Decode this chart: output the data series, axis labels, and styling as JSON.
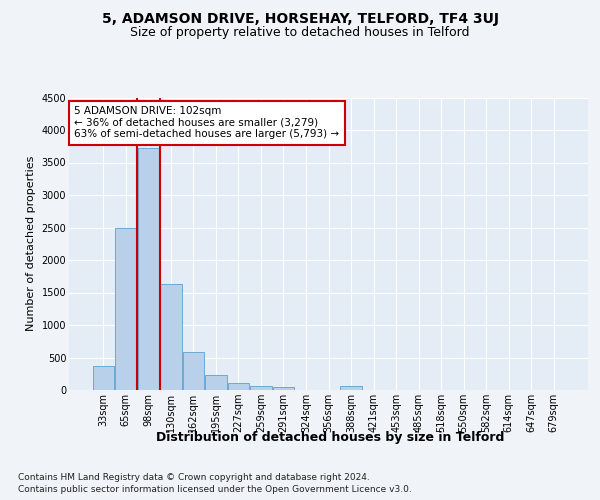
{
  "title_line1": "5, ADAMSON DRIVE, HORSEHAY, TELFORD, TF4 3UJ",
  "title_line2": "Size of property relative to detached houses in Telford",
  "xlabel": "Distribution of detached houses by size in Telford",
  "ylabel": "Number of detached properties",
  "categories": [
    "33sqm",
    "65sqm",
    "98sqm",
    "130sqm",
    "162sqm",
    "195sqm",
    "227sqm",
    "259sqm",
    "291sqm",
    "324sqm",
    "356sqm",
    "388sqm",
    "421sqm",
    "453sqm",
    "485sqm",
    "518sqm",
    "550sqm",
    "582sqm",
    "614sqm",
    "647sqm",
    "679sqm"
  ],
  "values": [
    370,
    2500,
    3720,
    1630,
    590,
    230,
    110,
    60,
    40,
    0,
    0,
    60,
    0,
    0,
    0,
    0,
    0,
    0,
    0,
    0,
    0
  ],
  "bar_color": "#b8d0ea",
  "bar_edge_color": "#6aaad4",
  "highlight_bar_index": 2,
  "highlight_line_color": "#cc0000",
  "ylim": [
    0,
    4500
  ],
  "yticks": [
    0,
    500,
    1000,
    1500,
    2000,
    2500,
    3000,
    3500,
    4000,
    4500
  ],
  "annotation_text": "5 ADAMSON DRIVE: 102sqm\n← 36% of detached houses are smaller (3,279)\n63% of semi-detached houses are larger (5,793) →",
  "annotation_box_color": "#ffffff",
  "annotation_box_edge_color": "#cc0000",
  "footer_line1": "Contains HM Land Registry data © Crown copyright and database right 2024.",
  "footer_line2": "Contains public sector information licensed under the Open Government Licence v3.0.",
  "background_color": "#f0f4f8",
  "plot_bg_color": "#e4ecf5",
  "grid_color": "#ffffff",
  "title1_fontsize": 10,
  "title2_fontsize": 9,
  "xlabel_fontsize": 9,
  "ylabel_fontsize": 8,
  "tick_fontsize": 7,
  "footer_fontsize": 6.5,
  "annotation_fontsize": 7.5
}
